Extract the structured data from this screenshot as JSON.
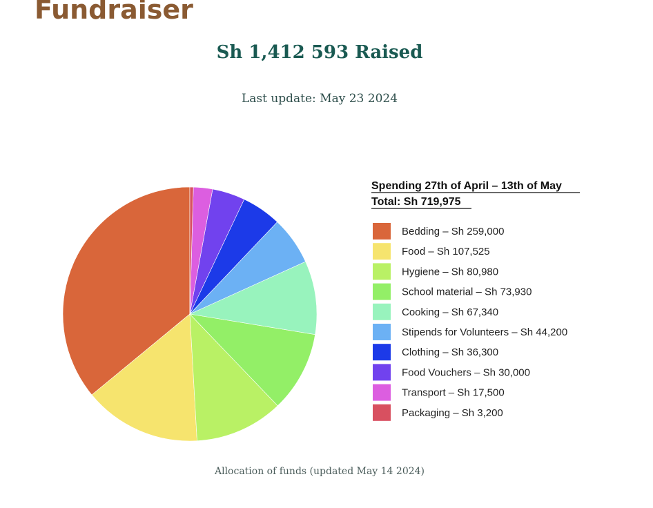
{
  "page": {
    "heading": "Fundraiser",
    "raised": "Sh 1,412 593 Raised",
    "last_update": "Last update: May 23 2024",
    "caption": "Allocation of funds (updated May 14 2024)"
  },
  "chart_data": {
    "type": "pie",
    "title": "Spending 27th of April – 13th of May",
    "subtitle": "Total: Sh 719,975",
    "start_angle": "12 o'clock",
    "direction": "counterclockwise",
    "legend_position": "right",
    "slices": [
      {
        "label": "Bedding",
        "value": 259000,
        "text": "Bedding – Sh 259,000",
        "color": "#d9663a"
      },
      {
        "label": "Food",
        "value": 107525,
        "text": "Food – Sh 107,525",
        "color": "#f6e46e"
      },
      {
        "label": "Hygiene",
        "value": 80980,
        "text": "Hygiene – Sh 80,980",
        "color": "#b9f165"
      },
      {
        "label": "School material",
        "value": 73930,
        "text": "School material – Sh 73,930",
        "color": "#93ef67"
      },
      {
        "label": "Cooking",
        "value": 67340,
        "text": "Cooking – Sh 67,340",
        "color": "#98f3bd"
      },
      {
        "label": "Stipends for Volunteers",
        "value": 44200,
        "text": "Stipends for Volunteers – Sh 44,200",
        "color": "#6cb1f4"
      },
      {
        "label": "Clothing",
        "value": 36300,
        "text": "Clothing – Sh 36,300",
        "color": "#1c3ae8"
      },
      {
        "label": "Food Vouchers",
        "value": 30000,
        "text": "Food Vouchers – Sh 30,000",
        "color": "#7142ee"
      },
      {
        "label": "Transport",
        "value": 17500,
        "text": "Transport – Sh 17,500",
        "color": "#dc5ee0"
      },
      {
        "label": "Packaging",
        "value": 3200,
        "text": "Packaging – Sh 3,200",
        "color": "#d85060"
      }
    ]
  }
}
